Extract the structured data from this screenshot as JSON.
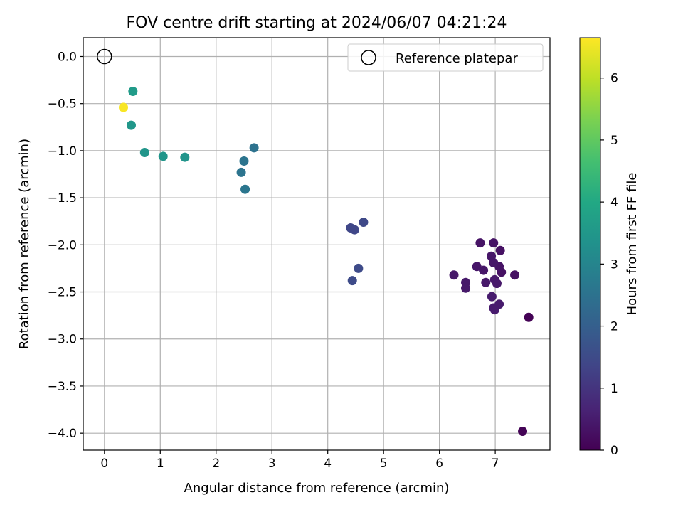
{
  "chart_data": {
    "type": "scatter",
    "title": "FOV centre drift starting at 2024/06/07 04:21:24",
    "xlabel": "Angular distance from reference (arcmin)",
    "ylabel": "Rotation from reference (arcmin)",
    "xlim": [
      -0.38,
      7.98
    ],
    "ylim": [
      -4.18,
      0.2
    ],
    "xticks": [
      0,
      1,
      2,
      3,
      4,
      5,
      6,
      7
    ],
    "yticks": [
      0.0,
      -0.5,
      -1.0,
      -1.5,
      -2.0,
      -2.5,
      -3.0,
      -3.5,
      -4.0
    ],
    "grid": true,
    "legend": {
      "location": "top-right",
      "label": "Reference platepar"
    },
    "reference_point": {
      "x": 0,
      "y": 0
    },
    "colorbar": {
      "label": "Hours from first FF file",
      "colormap": "viridis",
      "range": [
        0,
        6.65
      ],
      "ticks": [
        0,
        1,
        2,
        3,
        4,
        5,
        6
      ]
    },
    "points": [
      {
        "x": 7.6,
        "y": -2.77,
        "t": 0.02
      },
      {
        "x": 7.49,
        "y": -3.98,
        "t": 0.05
      },
      {
        "x": 7.35,
        "y": -2.32,
        "t": 0.3
      },
      {
        "x": 7.09,
        "y": -2.06,
        "t": 0.3
      },
      {
        "x": 7.11,
        "y": -2.29,
        "t": 0.3
      },
      {
        "x": 7.07,
        "y": -2.23,
        "t": 0.35
      },
      {
        "x": 6.73,
        "y": -1.98,
        "t": 0.35
      },
      {
        "x": 6.97,
        "y": -1.98,
        "t": 0.35
      },
      {
        "x": 6.93,
        "y": -2.12,
        "t": 0.4
      },
      {
        "x": 6.97,
        "y": -2.19,
        "t": 0.4
      },
      {
        "x": 6.67,
        "y": -2.23,
        "t": 0.4
      },
      {
        "x": 6.79,
        "y": -2.27,
        "t": 0.4
      },
      {
        "x": 6.26,
        "y": -2.32,
        "t": 0.45
      },
      {
        "x": 6.47,
        "y": -2.4,
        "t": 0.45
      },
      {
        "x": 6.47,
        "y": -2.46,
        "t": 0.45
      },
      {
        "x": 6.83,
        "y": -2.4,
        "t": 0.45
      },
      {
        "x": 6.99,
        "y": -2.37,
        "t": 0.45
      },
      {
        "x": 7.03,
        "y": -2.41,
        "t": 0.45
      },
      {
        "x": 6.94,
        "y": -2.55,
        "t": 0.5
      },
      {
        "x": 7.07,
        "y": -2.63,
        "t": 0.5
      },
      {
        "x": 6.97,
        "y": -2.67,
        "t": 0.5
      },
      {
        "x": 6.99,
        "y": -2.69,
        "t": 0.5
      },
      {
        "x": 4.41,
        "y": -1.82,
        "t": 1.4
      },
      {
        "x": 4.48,
        "y": -1.84,
        "t": 1.4
      },
      {
        "x": 4.64,
        "y": -1.76,
        "t": 1.45
      },
      {
        "x": 4.55,
        "y": -2.25,
        "t": 1.5
      },
      {
        "x": 4.44,
        "y": -2.38,
        "t": 1.5
      },
      {
        "x": 2.68,
        "y": -0.97,
        "t": 2.5
      },
      {
        "x": 2.5,
        "y": -1.11,
        "t": 2.55
      },
      {
        "x": 2.45,
        "y": -1.23,
        "t": 2.55
      },
      {
        "x": 2.52,
        "y": -1.41,
        "t": 2.6
      },
      {
        "x": 1.44,
        "y": -1.07,
        "t": 3.4
      },
      {
        "x": 1.05,
        "y": -1.06,
        "t": 3.45
      },
      {
        "x": 0.72,
        "y": -1.02,
        "t": 3.45
      },
      {
        "x": 0.48,
        "y": -0.73,
        "t": 3.5
      },
      {
        "x": 0.51,
        "y": -0.37,
        "t": 3.6
      },
      {
        "x": 0.34,
        "y": -0.54,
        "t": 6.6
      }
    ]
  }
}
